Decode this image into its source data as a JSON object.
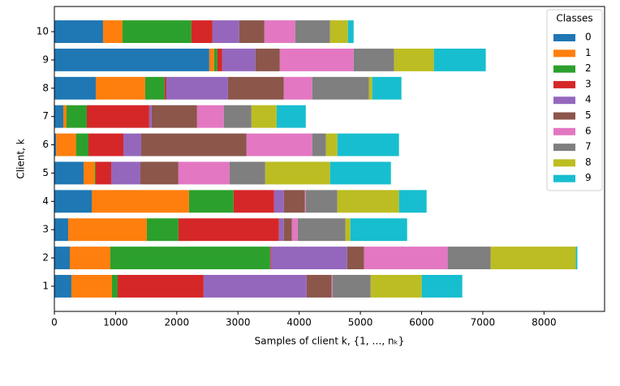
{
  "chart_data": {
    "type": "stacked-barh",
    "xlabel": "Samples of client k, {1, …, nₖ}",
    "ylabel": "Client, k",
    "legend_title": "Classes",
    "legend_loc": "upper right",
    "categories": [
      "1",
      "2",
      "3",
      "4",
      "5",
      "6",
      "7",
      "8",
      "9",
      "10"
    ],
    "xlim": [
      0,
      8990
    ],
    "xticks": [
      0,
      1000,
      2000,
      3000,
      4000,
      5000,
      6000,
      7000,
      8000
    ],
    "series": [
      {
        "name": "0",
        "color": "#1f77b4",
        "values": [
          278,
          252,
          225,
          610,
          477,
          30,
          146,
          676,
          2531,
          795
        ]
      },
      {
        "name": "1",
        "color": "#ff7f0e",
        "values": [
          663,
          662,
          1286,
          1590,
          186,
          328,
          53,
          808,
          79,
          318
        ]
      },
      {
        "name": "2",
        "color": "#2ca02c",
        "values": [
          93,
          2611,
          516,
          728,
          13,
          199,
          331,
          318,
          53,
          1126
        ]
      },
      {
        "name": "3",
        "color": "#d62728",
        "values": [
          1404,
          13,
          1643,
          663,
          252,
          570,
          1020,
          27,
          80,
          345
        ]
      },
      {
        "name": "4",
        "color": "#9467bd",
        "values": [
          1683,
          1246,
          80,
          159,
          477,
          291,
          40,
          1007,
          543,
          437
        ]
      },
      {
        "name": "5",
        "color": "#8c564b",
        "values": [
          411,
          277,
          132,
          344,
          622,
          1722,
          742,
          914,
          398,
          411
        ]
      },
      {
        "name": "6",
        "color": "#e377c2",
        "values": [
          13,
          1365,
          93,
          14,
          835,
          1073,
          437,
          464,
          1206,
          503
        ]
      },
      {
        "name": "7",
        "color": "#7f7f7f",
        "values": [
          623,
          703,
          782,
          516,
          583,
          225,
          451,
          927,
          662,
          570
        ]
      },
      {
        "name": "8",
        "color": "#bcbd22",
        "values": [
          834,
          1391,
          79,
          1007,
          1060,
          186,
          411,
          53,
          649,
          292
        ]
      },
      {
        "name": "9",
        "color": "#17becf",
        "values": [
          663,
          26,
          928,
          451,
          994,
          1007,
          477,
          477,
          848,
          93
        ]
      }
    ]
  }
}
